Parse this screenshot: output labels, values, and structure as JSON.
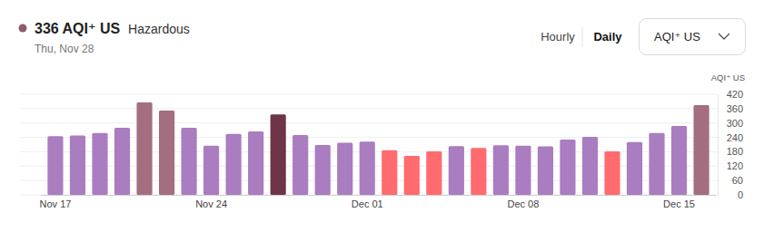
{
  "chart_data": {
    "type": "bar",
    "title": "336 AQI⁺ US",
    "subtitle": "Hazardous",
    "date": "Thu, Nov 28",
    "y_label": "AQI⁺ US",
    "categories": [
      "Nov 17",
      null,
      null,
      null,
      null,
      null,
      null,
      "Nov 24",
      null,
      null,
      null,
      null,
      null,
      null,
      "Dec 01",
      null,
      null,
      null,
      null,
      null,
      null,
      "Dec 08",
      null,
      null,
      null,
      null,
      null,
      null,
      "Dec 15",
      null
    ],
    "values": [
      245,
      248,
      258,
      280,
      386,
      352,
      280,
      205,
      254,
      265,
      336,
      250,
      208,
      218,
      222,
      186,
      163,
      182,
      203,
      196,
      207,
      205,
      202,
      231,
      242,
      182,
      220,
      258,
      288,
      375
    ],
    "colors": [
      "#aa7cc0",
      "#aa7cc0",
      "#aa7cc0",
      "#aa7cc0",
      "#a36e7f",
      "#a36e7f",
      "#aa7cc0",
      "#aa7cc0",
      "#aa7cc0",
      "#aa7cc0",
      "#6e3448",
      "#aa7cc0",
      "#aa7cc0",
      "#aa7cc0",
      "#aa7cc0",
      "#ff6b6e",
      "#ff6b6e",
      "#ff6b6e",
      "#aa7cc0",
      "#ff6b6e",
      "#aa7cc0",
      "#aa7cc0",
      "#aa7cc0",
      "#aa7cc0",
      "#aa7cc0",
      "#ff6b6e",
      "#aa7cc0",
      "#aa7cc0",
      "#aa7cc0",
      "#a36e7f"
    ],
    "color": "#8c5b6c",
    "ylim": [
      0,
      420
    ],
    "yticks": [
      0,
      60,
      120,
      180,
      240,
      300,
      360,
      420
    ],
    "grid": true
  },
  "controls": {
    "tabs": [
      "Hourly",
      "Daily"
    ],
    "dropdown": "AQI⁺ US"
  }
}
